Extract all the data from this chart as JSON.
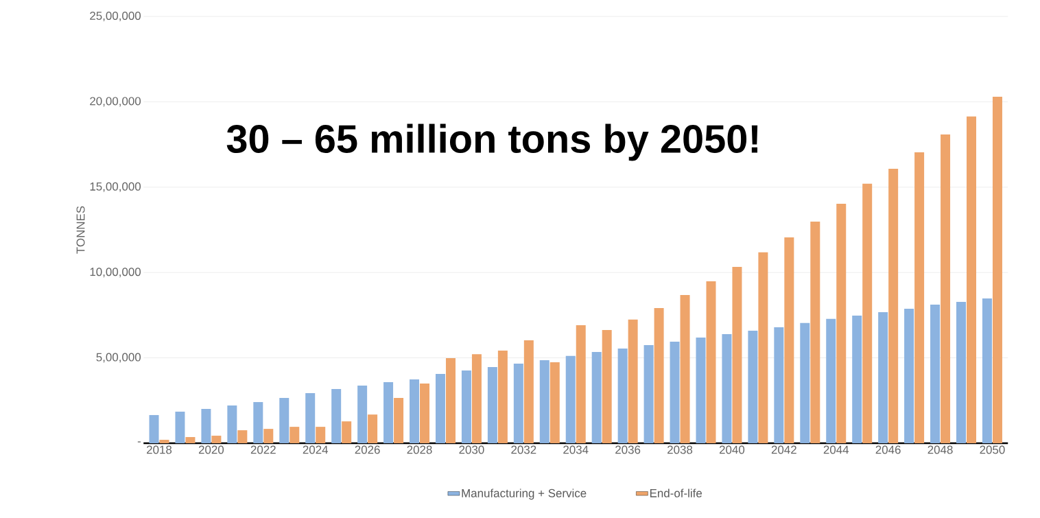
{
  "chart_data": {
    "type": "bar",
    "ylabel": "TONNES",
    "annotations": [
      "30 – 65 million tons by 2050!"
    ],
    "categories": [
      "2018",
      null,
      "2020",
      null,
      "2022",
      null,
      "2024",
      null,
      "2026",
      null,
      "2028",
      null,
      "2030",
      null,
      "2032",
      null,
      "2034",
      null,
      "2036",
      null,
      "2038",
      null,
      "2040",
      null,
      "2042",
      null,
      "2044",
      null,
      "2046",
      null,
      "2048",
      null,
      "2050"
    ],
    "series": [
      {
        "name": "Manufacturing + Service",
        "color": "#8cb3e0",
        "values": [
          165000,
          185000,
          201000,
          221000,
          241000,
          265000,
          293000,
          318000,
          338000,
          358000,
          374000,
          406000,
          426000,
          446000,
          466000,
          486000,
          511000,
          535000,
          555000,
          575000,
          595000,
          619000,
          639000,
          659000,
          679000,
          704000,
          728000,
          748000,
          768000,
          788000,
          812000,
          828000,
          848000
        ]
      },
      {
        "name": "End-of-life",
        "color": "#eea46a",
        "values": [
          20000,
          36000,
          44000,
          76000,
          84000,
          96000,
          96000,
          128000,
          168000,
          265000,
          350000,
          498000,
          522000,
          543000,
          603000,
          474000,
          691000,
          663000,
          724000,
          792000,
          868000,
          949000,
          1033000,
          1118000,
          1206000,
          1298000,
          1403000,
          1520000,
          1608000,
          1704000,
          1809000,
          1914000,
          2030000
        ]
      }
    ],
    "ylim": [
      0,
      2500000
    ],
    "yticks": [
      {
        "value": 0,
        "label": "-"
      },
      {
        "value": 500000,
        "label": "5,00,000"
      },
      {
        "value": 1000000,
        "label": "10,00,000"
      },
      {
        "value": 1500000,
        "label": "15,00,000"
      },
      {
        "value": 2000000,
        "label": "20,00,000"
      },
      {
        "value": 2500000,
        "label": "25,00,000"
      }
    ],
    "grid": "y",
    "legend": "bottom"
  }
}
